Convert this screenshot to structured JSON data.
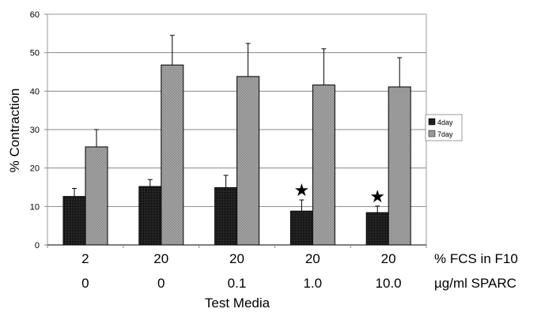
{
  "chart_data": {
    "type": "bar",
    "ylabel": "% Contraction",
    "xlabel": "Test Media",
    "ylim": [
      0,
      60
    ],
    "yticks": [
      0,
      10,
      20,
      30,
      40,
      50,
      60
    ],
    "grid": true,
    "legend_position": "right",
    "category_rows": [
      {
        "label": "% FCS in F10",
        "values": [
          "2",
          "20",
          "20",
          "20",
          "20"
        ]
      },
      {
        "label": "µg/ml SPARC",
        "values": [
          "0",
          "0",
          "0.1",
          "1.0",
          "10.0"
        ]
      }
    ],
    "series": [
      {
        "name": "4day",
        "color": "#1a1a1a",
        "values": [
          12.6,
          15.2,
          14.9,
          8.8,
          8.4
        ],
        "error": [
          2.1,
          1.8,
          3.2,
          2.9,
          1.7
        ]
      },
      {
        "name": "7day",
        "color": "#8c8c8c",
        "values": [
          25.5,
          46.8,
          43.8,
          41.6,
          41.1
        ],
        "error": [
          4.5,
          7.7,
          8.6,
          9.4,
          7.6
        ]
      }
    ],
    "annotations": [
      {
        "symbol": "★",
        "category_index": 3,
        "series": "4day"
      },
      {
        "symbol": "★",
        "category_index": 4,
        "series": "4day"
      }
    ]
  }
}
